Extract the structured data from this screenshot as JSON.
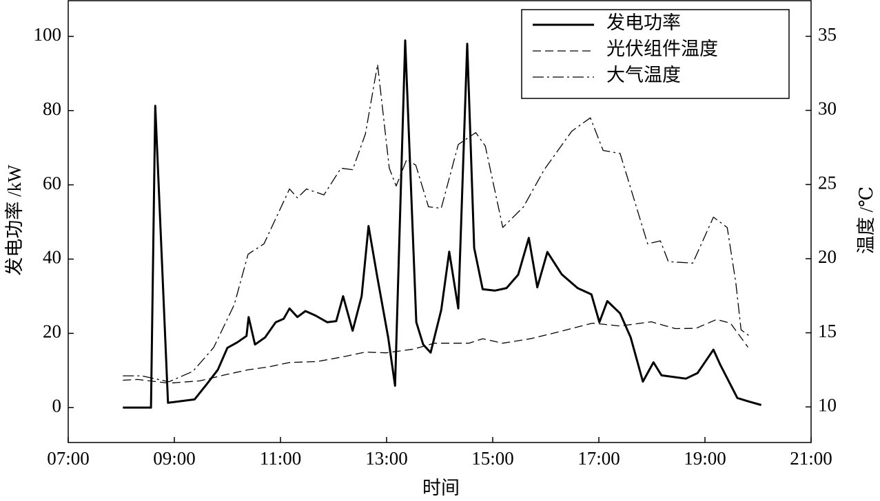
{
  "chart_data": {
    "type": "line",
    "xlabel": "时间",
    "ylabel": "发电功率 /kW",
    "y2label": "温度 /℃",
    "xlim": [
      7,
      21
    ],
    "xticks": [
      {
        "value": 7,
        "label": "07:00"
      },
      {
        "value": 9,
        "label": "09:00"
      },
      {
        "value": 11,
        "label": "11:00"
      },
      {
        "value": 13,
        "label": "13:00"
      },
      {
        "value": 15,
        "label": "15:00"
      },
      {
        "value": 17,
        "label": "17:00"
      },
      {
        "value": 19,
        "label": "19:00"
      },
      {
        "value": 21,
        "label": "21:00"
      }
    ],
    "ylim": [
      -9.4,
      109.6
    ],
    "yticks": [
      0,
      20,
      40,
      60,
      80,
      100
    ],
    "y2lim": [
      7.6,
      37.4
    ],
    "y2ticks": [
      10,
      15,
      20,
      25,
      30,
      35
    ],
    "legend": "upper right",
    "series": [
      {
        "name": "发电功率",
        "color": "#000000",
        "line_style": "solid",
        "axis": "y",
        "x": [
          8.03,
          8.56,
          8.64,
          8.88,
          9.38,
          9.61,
          9.82,
          10.0,
          10.19,
          10.36,
          10.4,
          10.52,
          10.71,
          10.91,
          11.06,
          11.17,
          11.32,
          11.47,
          11.66,
          11.88,
          12.05,
          12.18,
          12.36,
          12.53,
          12.66,
          12.82,
          13.03,
          13.16,
          13.35,
          13.56,
          13.69,
          13.83,
          14.03,
          14.18,
          14.35,
          14.52,
          14.65,
          14.81,
          15.04,
          15.26,
          15.48,
          15.68,
          15.84,
          16.03,
          16.3,
          16.6,
          16.86,
          17.01,
          17.16,
          17.4,
          17.6,
          17.83,
          18.03,
          18.18,
          18.64,
          18.86,
          19.16,
          19.29,
          19.61,
          19.81,
          20.06
        ],
        "values": [
          0,
          0,
          81.3,
          1.3,
          2.2,
          6.3,
          10.2,
          16.1,
          17.6,
          19.3,
          24.4,
          17,
          18.9,
          23,
          23.9,
          26.7,
          24.4,
          26,
          24.8,
          23,
          23.3,
          30,
          20.7,
          30,
          48.9,
          35.6,
          18.9,
          5.9,
          98.9,
          23,
          17,
          14.8,
          26.3,
          42,
          26.7,
          98,
          43,
          31.9,
          31.5,
          32.2,
          35.8,
          45.7,
          32.4,
          41.9,
          35.9,
          32.2,
          30.5,
          23,
          28.7,
          25.4,
          18.9,
          7,
          12.2,
          8.7,
          7.8,
          9.3,
          15.6,
          11.5,
          2.6,
          1.7,
          0.7
        ]
      },
      {
        "name": "光伏组件温度",
        "color": "#000000",
        "line_style": "dashed",
        "axis": "y2",
        "x": [
          8.03,
          8.31,
          8.9,
          9.48,
          10.0,
          10.39,
          10.78,
          11.17,
          11.69,
          12.21,
          12.6,
          12.99,
          13.51,
          13.9,
          14.55,
          14.81,
          15.19,
          15.71,
          16.23,
          16.88,
          17.4,
          17.99,
          18.44,
          18.83,
          19.22,
          19.48,
          19.81
        ],
        "values": [
          11.8,
          11.85,
          11.6,
          11.76,
          12.2,
          12.5,
          12.7,
          13,
          13.06,
          13.4,
          13.7,
          13.65,
          13.9,
          14.3,
          14.3,
          14.6,
          14.3,
          14.6,
          15.05,
          15.65,
          15.46,
          15.74,
          15.28,
          15.3,
          15.9,
          15.65,
          14.03
        ]
      },
      {
        "name": "大气温度",
        "color": "#000000",
        "line_style": "dashdot",
        "axis": "y2",
        "x": [
          8.03,
          8.38,
          8.9,
          9.35,
          9.74,
          10.13,
          10.39,
          10.69,
          11.17,
          11.32,
          11.49,
          11.82,
          12.14,
          12.36,
          12.6,
          12.83,
          13.05,
          13.18,
          13.38,
          13.55,
          13.79,
          14.03,
          14.35,
          14.68,
          14.86,
          15.19,
          15.58,
          15.97,
          16.49,
          16.84,
          17.08,
          17.4,
          17.92,
          18.16,
          18.31,
          18.77,
          19.16,
          19.42,
          19.58,
          19.68,
          19.87
        ],
        "values": [
          12.1,
          12.1,
          11.7,
          12.4,
          14,
          16.9,
          20.3,
          21,
          24.7,
          24.1,
          24.7,
          24.3,
          26.1,
          26,
          28.4,
          33.1,
          26.1,
          24.9,
          26.7,
          26.3,
          23.5,
          23.4,
          27.7,
          28.5,
          27.6,
          22.1,
          23.5,
          26,
          28.6,
          29.5,
          27.3,
          27.1,
          21,
          21.2,
          19.8,
          19.7,
          22.8,
          22.1,
          18.4,
          15.2,
          14.7
        ]
      }
    ]
  }
}
